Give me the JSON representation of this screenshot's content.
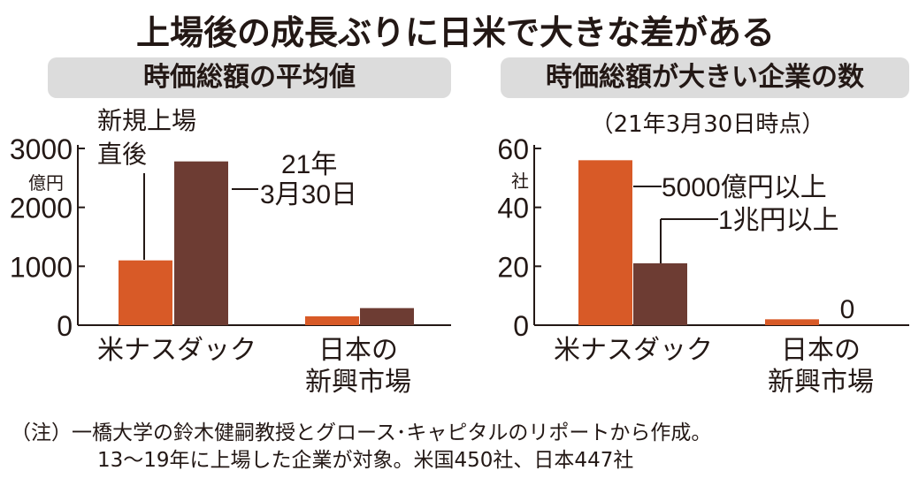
{
  "title": "上場後の成長ぶりに日米で大きな差がある",
  "colors": {
    "orange": "#d85a27",
    "brown": "#6d3c33",
    "panel": "#dcdcdc",
    "text": "#231815"
  },
  "chart_data": [
    {
      "type": "bar",
      "title": "時価総額の平均値",
      "ylabel": "億円",
      "ylim": [
        0,
        3000
      ],
      "yticks": [
        "0",
        "1000",
        "2000",
        "3000"
      ],
      "categories": [
        "米ナスダック",
        "日本の\n新興市場"
      ],
      "series": [
        {
          "name": "新規上場\n直後",
          "color": "#d85a27",
          "values": [
            1100,
            150
          ]
        },
        {
          "name": "21年\n3月30日",
          "color": "#6d3c33",
          "values": [
            2780,
            290
          ]
        }
      ]
    },
    {
      "type": "bar",
      "title": "時価総額が大きい企業の数",
      "subtitle": "（21年3月30日時点）",
      "ylabel": "社",
      "ylim": [
        0,
        60
      ],
      "yticks": [
        "0",
        "20",
        "40",
        "60"
      ],
      "categories": [
        "米ナスダック",
        "日本の\n新興市場"
      ],
      "series": [
        {
          "name": "5000億円以上",
          "color": "#d85a27",
          "values": [
            56,
            2
          ]
        },
        {
          "name": "1兆円以上",
          "color": "#6d3c33",
          "values": [
            21,
            0
          ]
        }
      ],
      "annotations": [
        "0"
      ]
    }
  ],
  "notes": [
    "（注）一橋大学の鈴木健嗣教授とグロース･キャピタルのリポートから作成。",
    "13～19年に上場した企業が対象。米国450社、日本447社"
  ]
}
